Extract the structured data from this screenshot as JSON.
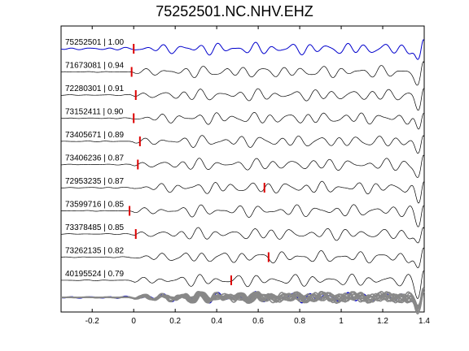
{
  "chart_data": {
    "type": "line",
    "title": "75252501.NC.NHV.EHZ",
    "xlabel": "",
    "ylabel": "",
    "xlim": [
      -0.35,
      1.4
    ],
    "xticks": [
      -0.2,
      0,
      0.2,
      0.4,
      0.6,
      0.8,
      1,
      1.2,
      1.4
    ],
    "xtick_labels": [
      "-0.2",
      "0",
      "0.2",
      "0.4",
      "0.6",
      "0.8",
      "1",
      "1.2",
      "1.4"
    ],
    "grid": false,
    "legend": "none",
    "colors": {
      "reference": "#0000cc",
      "trace": "#000000",
      "pick": "#dd0000",
      "stack": "#888888"
    },
    "series": [
      {
        "name": "75252501 | 1.00",
        "pick_time": 0.0,
        "reference": true
      },
      {
        "name": "71673081 | 0.94",
        "pick_time": -0.01
      },
      {
        "name": "72280301 | 0.91",
        "pick_time": 0.01
      },
      {
        "name": "73152411 | 0.90",
        "pick_time": 0.0
      },
      {
        "name": "73405671 | 0.89",
        "pick_time": 0.03
      },
      {
        "name": "73406236 | 0.87",
        "pick_time": 0.02
      },
      {
        "name": "72953235 | 0.87",
        "pick_time": 0.63
      },
      {
        "name": "73599716 | 0.85",
        "pick_time": -0.02
      },
      {
        "name": "73378485 | 0.85",
        "pick_time": 0.01
      },
      {
        "name": "73262135 | 0.82",
        "pick_time": 0.65
      },
      {
        "name": "40195524 | 0.79",
        "pick_time": 0.47
      }
    ],
    "stack": {
      "name": "",
      "count": 11
    }
  }
}
